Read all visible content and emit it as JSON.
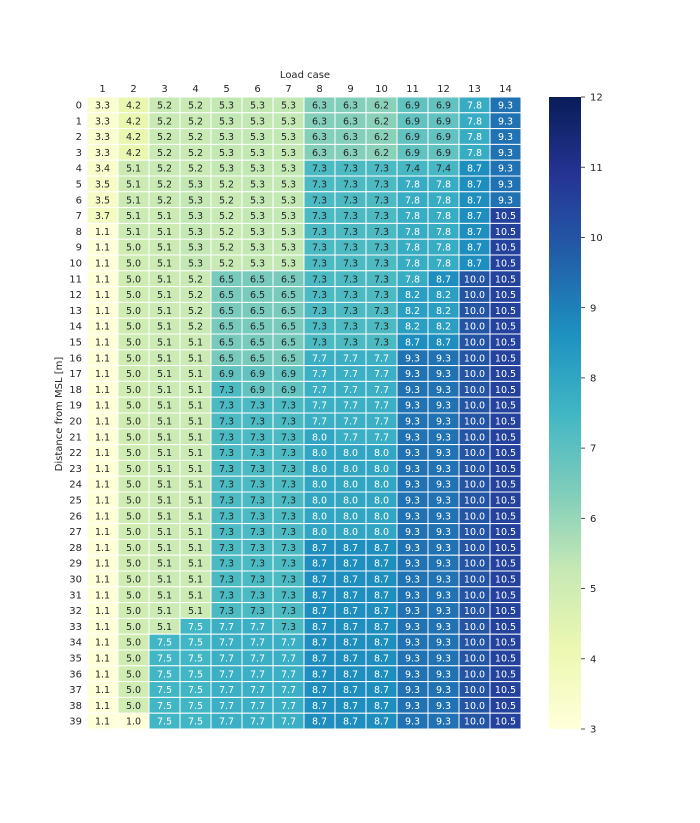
{
  "chart_data": {
    "type": "heatmap",
    "title": "",
    "xlabel": "Load case",
    "ylabel": "Distance from MSL [m]",
    "x_categories": [
      "1",
      "2",
      "3",
      "4",
      "5",
      "6",
      "7",
      "8",
      "9",
      "10",
      "11",
      "12",
      "13",
      "14"
    ],
    "y_categories": [
      "0",
      "1",
      "2",
      "3",
      "4",
      "5",
      "6",
      "7",
      "8",
      "9",
      "10",
      "11",
      "12",
      "13",
      "14",
      "15",
      "16",
      "17",
      "18",
      "19",
      "20",
      "21",
      "22",
      "23",
      "24",
      "25",
      "26",
      "27",
      "28",
      "29",
      "30",
      "31",
      "32",
      "33",
      "34",
      "35",
      "36",
      "37",
      "38",
      "39"
    ],
    "values": [
      [
        "3.3",
        "4.2",
        "5.2",
        "5.2",
        "5.3",
        "5.3",
        "5.3",
        "6.3",
        "6.3",
        "6.2",
        "6.9",
        "6.9",
        "7.8",
        "9.3"
      ],
      [
        "3.3",
        "4.2",
        "5.2",
        "5.2",
        "5.3",
        "5.3",
        "5.3",
        "6.3",
        "6.3",
        "6.2",
        "6.9",
        "6.9",
        "7.8",
        "9.3"
      ],
      [
        "3.3",
        "4.2",
        "5.2",
        "5.2",
        "5.3",
        "5.3",
        "5.3",
        "6.3",
        "6.3",
        "6.2",
        "6.9",
        "6.9",
        "7.8",
        "9.3"
      ],
      [
        "3.3",
        "4.2",
        "5.2",
        "5.2",
        "5.3",
        "5.3",
        "5.3",
        "6.3",
        "6.3",
        "6.2",
        "6.9",
        "6.9",
        "7.8",
        "9.3"
      ],
      [
        "3.4",
        "5.1",
        "5.2",
        "5.2",
        "5.3",
        "5.3",
        "5.3",
        "7.3",
        "7.3",
        "7.3",
        "7.4",
        "7.4",
        "8.7",
        "9.3"
      ],
      [
        "3.5",
        "5.1",
        "5.2",
        "5.3",
        "5.2",
        "5.3",
        "5.3",
        "7.3",
        "7.3",
        "7.3",
        "7.8",
        "7.8",
        "8.7",
        "9.3"
      ],
      [
        "3.5",
        "5.1",
        "5.2",
        "5.3",
        "5.2",
        "5.3",
        "5.3",
        "7.3",
        "7.3",
        "7.3",
        "7.8",
        "7.8",
        "8.7",
        "9.3"
      ],
      [
        "3.7",
        "5.1",
        "5.1",
        "5.3",
        "5.2",
        "5.3",
        "5.3",
        "7.3",
        "7.3",
        "7.3",
        "7.8",
        "7.8",
        "8.7",
        "10.5"
      ],
      [
        "1.1",
        "5.1",
        "5.1",
        "5.3",
        "5.2",
        "5.3",
        "5.3",
        "7.3",
        "7.3",
        "7.3",
        "7.8",
        "7.8",
        "8.7",
        "10.5"
      ],
      [
        "1.1",
        "5.0",
        "5.1",
        "5.3",
        "5.2",
        "5.3",
        "5.3",
        "7.3",
        "7.3",
        "7.3",
        "7.8",
        "7.8",
        "8.7",
        "10.5"
      ],
      [
        "1.1",
        "5.0",
        "5.1",
        "5.3",
        "5.2",
        "5.3",
        "5.3",
        "7.3",
        "7.3",
        "7.3",
        "7.8",
        "7.8",
        "8.7",
        "10.5"
      ],
      [
        "1.1",
        "5.0",
        "5.1",
        "5.2",
        "6.5",
        "6.5",
        "6.5",
        "7.3",
        "7.3",
        "7.3",
        "7.8",
        "8.7",
        "10.0",
        "10.5"
      ],
      [
        "1.1",
        "5.0",
        "5.1",
        "5.2",
        "6.5",
        "6.5",
        "6.5",
        "7.3",
        "7.3",
        "7.3",
        "8.2",
        "8.2",
        "10.0",
        "10.5"
      ],
      [
        "1.1",
        "5.0",
        "5.1",
        "5.2",
        "6.5",
        "6.5",
        "6.5",
        "7.3",
        "7.3",
        "7.3",
        "8.2",
        "8.2",
        "10.0",
        "10.5"
      ],
      [
        "1.1",
        "5.0",
        "5.1",
        "5.2",
        "6.5",
        "6.5",
        "6.5",
        "7.3",
        "7.3",
        "7.3",
        "8.2",
        "8.2",
        "10.0",
        "10.5"
      ],
      [
        "1.1",
        "5.0",
        "5.1",
        "5.1",
        "6.5",
        "6.5",
        "6.5",
        "7.3",
        "7.3",
        "7.3",
        "8.7",
        "8.7",
        "10.0",
        "10.5"
      ],
      [
        "1.1",
        "5.0",
        "5.1",
        "5.1",
        "6.5",
        "6.5",
        "6.5",
        "7.7",
        "7.7",
        "7.7",
        "9.3",
        "9.3",
        "10.0",
        "10.5"
      ],
      [
        "1.1",
        "5.0",
        "5.1",
        "5.1",
        "6.9",
        "6.9",
        "6.9",
        "7.7",
        "7.7",
        "7.7",
        "9.3",
        "9.3",
        "10.0",
        "10.5"
      ],
      [
        "1.1",
        "5.0",
        "5.1",
        "5.1",
        "7.3",
        "6.9",
        "6.9",
        "7.7",
        "7.7",
        "7.7",
        "9.3",
        "9.3",
        "10.0",
        "10.5"
      ],
      [
        "1.1",
        "5.0",
        "5.1",
        "5.1",
        "7.3",
        "7.3",
        "7.3",
        "7.7",
        "7.7",
        "7.7",
        "9.3",
        "9.3",
        "10.0",
        "10.5"
      ],
      [
        "1.1",
        "5.0",
        "5.1",
        "5.1",
        "7.3",
        "7.3",
        "7.3",
        "7.7",
        "7.7",
        "7.7",
        "9.3",
        "9.3",
        "10.0",
        "10.5"
      ],
      [
        "1.1",
        "5.0",
        "5.1",
        "5.1",
        "7.3",
        "7.3",
        "7.3",
        "8.0",
        "7.7",
        "7.7",
        "9.3",
        "9.3",
        "10.0",
        "10.5"
      ],
      [
        "1.1",
        "5.0",
        "5.1",
        "5.1",
        "7.3",
        "7.3",
        "7.3",
        "8.0",
        "8.0",
        "8.0",
        "9.3",
        "9.3",
        "10.0",
        "10.5"
      ],
      [
        "1.1",
        "5.0",
        "5.1",
        "5.1",
        "7.3",
        "7.3",
        "7.3",
        "8.0",
        "8.0",
        "8.0",
        "9.3",
        "9.3",
        "10.0",
        "10.5"
      ],
      [
        "1.1",
        "5.0",
        "5.1",
        "5.1",
        "7.3",
        "7.3",
        "7.3",
        "8.0",
        "8.0",
        "8.0",
        "9.3",
        "9.3",
        "10.0",
        "10.5"
      ],
      [
        "1.1",
        "5.0",
        "5.1",
        "5.1",
        "7.3",
        "7.3",
        "7.3",
        "8.0",
        "8.0",
        "8.0",
        "9.3",
        "9.3",
        "10.0",
        "10.5"
      ],
      [
        "1.1",
        "5.0",
        "5.1",
        "5.1",
        "7.3",
        "7.3",
        "7.3",
        "8.0",
        "8.0",
        "8.0",
        "9.3",
        "9.3",
        "10.0",
        "10.5"
      ],
      [
        "1.1",
        "5.0",
        "5.1",
        "5.1",
        "7.3",
        "7.3",
        "7.3",
        "8.0",
        "8.0",
        "8.0",
        "9.3",
        "9.3",
        "10.0",
        "10.5"
      ],
      [
        "1.1",
        "5.0",
        "5.1",
        "5.1",
        "7.3",
        "7.3",
        "7.3",
        "8.7",
        "8.7",
        "8.7",
        "9.3",
        "9.3",
        "10.0",
        "10.5"
      ],
      [
        "1.1",
        "5.0",
        "5.1",
        "5.1",
        "7.3",
        "7.3",
        "7.3",
        "8.7",
        "8.7",
        "8.7",
        "9.3",
        "9.3",
        "10.0",
        "10.5"
      ],
      [
        "1.1",
        "5.0",
        "5.1",
        "5.1",
        "7.3",
        "7.3",
        "7.3",
        "8.7",
        "8.7",
        "8.7",
        "9.3",
        "9.3",
        "10.0",
        "10.5"
      ],
      [
        "1.1",
        "5.0",
        "5.1",
        "5.1",
        "7.3",
        "7.3",
        "7.3",
        "8.7",
        "8.7",
        "8.7",
        "9.3",
        "9.3",
        "10.0",
        "10.5"
      ],
      [
        "1.1",
        "5.0",
        "5.1",
        "5.1",
        "7.3",
        "7.3",
        "7.3",
        "8.7",
        "8.7",
        "8.7",
        "9.3",
        "9.3",
        "10.0",
        "10.5"
      ],
      [
        "1.1",
        "5.0",
        "5.1",
        "7.5",
        "7.7",
        "7.7",
        "7.3",
        "8.7",
        "8.7",
        "8.7",
        "9.3",
        "9.3",
        "10.0",
        "10.5"
      ],
      [
        "1.1",
        "5.0",
        "7.5",
        "7.5",
        "7.7",
        "7.7",
        "7.7",
        "8.7",
        "8.7",
        "8.7",
        "9.3",
        "9.3",
        "10.0",
        "10.5"
      ],
      [
        "1.1",
        "5.0",
        "7.5",
        "7.5",
        "7.7",
        "7.7",
        "7.7",
        "8.7",
        "8.7",
        "8.7",
        "9.3",
        "9.3",
        "10.0",
        "10.5"
      ],
      [
        "1.1",
        "5.0",
        "7.5",
        "7.5",
        "7.7",
        "7.7",
        "7.7",
        "8.7",
        "8.7",
        "8.7",
        "9.3",
        "9.3",
        "10.0",
        "10.5"
      ],
      [
        "1.1",
        "5.0",
        "7.5",
        "7.5",
        "7.7",
        "7.7",
        "7.7",
        "8.7",
        "8.7",
        "8.7",
        "9.3",
        "9.3",
        "10.0",
        "10.5"
      ],
      [
        "1.1",
        "5.0",
        "7.5",
        "7.5",
        "7.7",
        "7.7",
        "7.7",
        "8.7",
        "8.7",
        "8.7",
        "9.3",
        "9.3",
        "10.0",
        "10.5"
      ],
      [
        "1.1",
        "1.0",
        "7.5",
        "7.5",
        "7.7",
        "7.7",
        "7.7",
        "8.7",
        "8.7",
        "8.7",
        "9.3",
        "9.3",
        "10.0",
        "10.5"
      ]
    ],
    "colorbar": {
      "min": 3,
      "max": 12,
      "ticks": [
        "3",
        "4",
        "5",
        "6",
        "7",
        "8",
        "9",
        "10",
        "11",
        "12"
      ]
    },
    "colormap": "YlGnBu",
    "grid": true
  }
}
